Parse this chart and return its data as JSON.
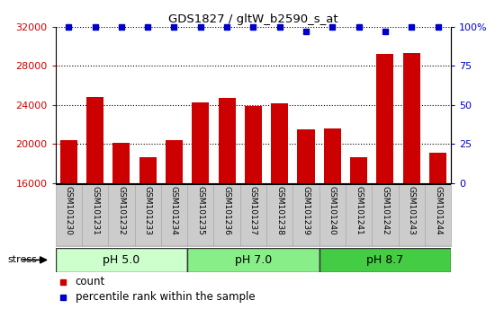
{
  "title": "GDS1827 / gltW_b2590_s_at",
  "categories": [
    "GSM101230",
    "GSM101231",
    "GSM101232",
    "GSM101233",
    "GSM101234",
    "GSM101235",
    "GSM101236",
    "GSM101237",
    "GSM101238",
    "GSM101239",
    "GSM101240",
    "GSM101241",
    "GSM101242",
    "GSM101243",
    "GSM101244"
  ],
  "counts": [
    20400,
    24800,
    20100,
    18600,
    20400,
    24300,
    24700,
    23900,
    24200,
    21500,
    21600,
    18600,
    29200,
    29300,
    19100
  ],
  "percentile": [
    100,
    100,
    100,
    100,
    100,
    100,
    100,
    100,
    100,
    97,
    100,
    100,
    97,
    100,
    100
  ],
  "bar_color": "#cc0000",
  "percentile_color": "#0000cc",
  "ylim_left": [
    16000,
    32000
  ],
  "ylim_right": [
    0,
    100
  ],
  "yticks_left": [
    16000,
    20000,
    24000,
    28000,
    32000
  ],
  "yticks_right": [
    0,
    25,
    50,
    75,
    100
  ],
  "groups": [
    {
      "label": "pH 5.0",
      "start": 0,
      "end": 5,
      "color": "#ccffcc"
    },
    {
      "label": "pH 7.0",
      "start": 5,
      "end": 10,
      "color": "#88ee88"
    },
    {
      "label": "pH 8.7",
      "start": 10,
      "end": 15,
      "color": "#44cc44"
    }
  ],
  "stress_label": "stress",
  "legend_count_label": "count",
  "legend_percentile_label": "percentile rank within the sample",
  "background_color": "#ffffff",
  "tick_area_color": "#cccccc"
}
